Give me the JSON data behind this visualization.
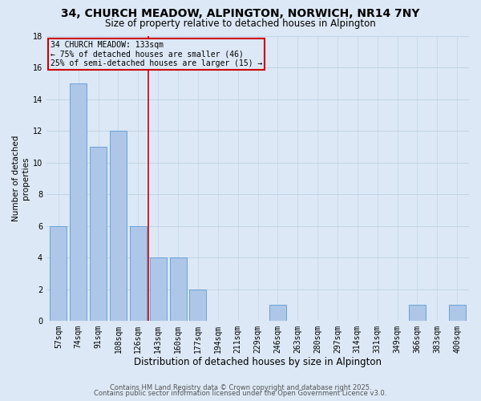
{
  "title": "34, CHURCH MEADOW, ALPINGTON, NORWICH, NR14 7NY",
  "subtitle": "Size of property relative to detached houses in Alpington",
  "xlabel": "Distribution of detached houses by size in Alpington",
  "ylabel": "Number of detached\nproperties",
  "categories": [
    "57sqm",
    "74sqm",
    "91sqm",
    "108sqm",
    "126sqm",
    "143sqm",
    "160sqm",
    "177sqm",
    "194sqm",
    "211sqm",
    "229sqm",
    "246sqm",
    "263sqm",
    "280sqm",
    "297sqm",
    "314sqm",
    "331sqm",
    "349sqm",
    "366sqm",
    "383sqm",
    "400sqm"
  ],
  "values": [
    6,
    15,
    11,
    12,
    6,
    4,
    4,
    2,
    0,
    0,
    0,
    1,
    0,
    0,
    0,
    0,
    0,
    0,
    1,
    0,
    1
  ],
  "bar_color": "#aec6e8",
  "bar_edge_color": "#5b9bd5",
  "bg_color": "#dce8f5",
  "grid_color": "#c0d4e8",
  "red_line_x": 4.5,
  "annotation_text": "34 CHURCH MEADOW: 133sqm\n← 75% of detached houses are smaller (46)\n25% of semi-detached houses are larger (15) →",
  "annotation_box_color": "#cc0000",
  "vline_color": "#cc0000",
  "ylim": [
    0,
    18
  ],
  "yticks": [
    0,
    2,
    4,
    6,
    8,
    10,
    12,
    14,
    16,
    18
  ],
  "footer1": "Contains HM Land Registry data © Crown copyright and database right 2025.",
  "footer2": "Contains public sector information licensed under the Open Government Licence v3.0.",
  "title_fontsize": 10,
  "subtitle_fontsize": 8.5,
  "xlabel_fontsize": 8.5,
  "ylabel_fontsize": 7.5,
  "tick_fontsize": 7,
  "annotation_fontsize": 7,
  "footer_fontsize": 6
}
